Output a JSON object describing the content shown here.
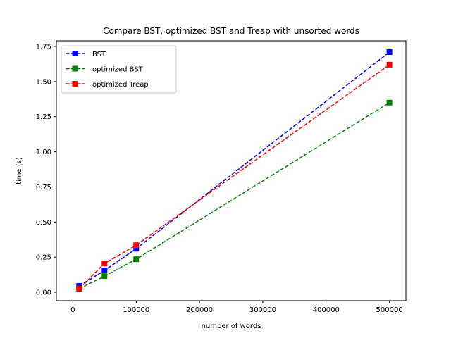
{
  "chart_data": {
    "type": "line",
    "title": "Compare BST, optimized BST and Treap with unsorted words",
    "xlabel": "number of words",
    "ylabel": "time (s)",
    "xlim": [
      -26000,
      526000
    ],
    "ylim": [
      -0.06,
      1.79
    ],
    "xticks": [
      0,
      100000,
      200000,
      300000,
      400000,
      500000
    ],
    "xtick_labels": [
      "0",
      "100000",
      "200000",
      "300000",
      "400000",
      "500000"
    ],
    "yticks": [
      0.0,
      0.25,
      0.5,
      0.75,
      1.0,
      1.25,
      1.5,
      1.75
    ],
    "ytick_labels": [
      "0.00",
      "0.25",
      "0.50",
      "0.75",
      "1.00",
      "1.25",
      "1.50",
      "1.75"
    ],
    "grid": false,
    "legend_position": "top-left",
    "x": [
      10000,
      50000,
      100000,
      500000
    ],
    "series": [
      {
        "name": "BST",
        "color": "#0000ff",
        "values": [
          0.045,
          0.155,
          0.31,
          1.71
        ]
      },
      {
        "name": "optimized BST",
        "color": "#008000",
        "values": [
          0.025,
          0.115,
          0.235,
          1.35
        ]
      },
      {
        "name": "optimized Treap",
        "color": "#ff0000",
        "values": [
          0.025,
          0.205,
          0.335,
          1.62
        ]
      }
    ]
  }
}
